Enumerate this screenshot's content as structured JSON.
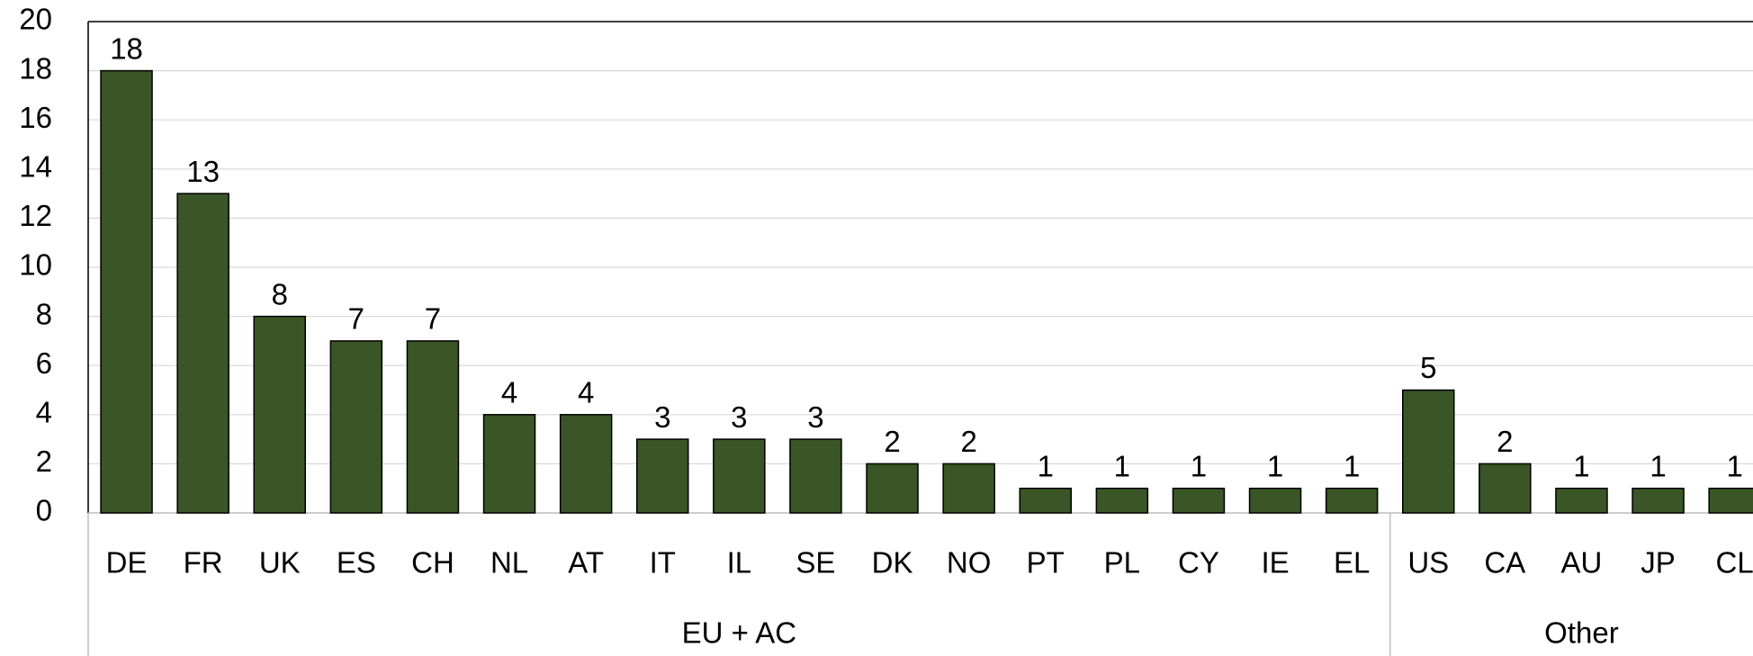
{
  "chart_data": {
    "type": "bar",
    "categories": [
      "DE",
      "FR",
      "UK",
      "ES",
      "CH",
      "NL",
      "AT",
      "IT",
      "IL",
      "SE",
      "DK",
      "NO",
      "PT",
      "PL",
      "CY",
      "IE",
      "EL",
      "US",
      "CA",
      "AU",
      "JP",
      "CL"
    ],
    "values": [
      18,
      13,
      8,
      7,
      7,
      4,
      4,
      3,
      3,
      3,
      2,
      2,
      1,
      1,
      1,
      1,
      1,
      5,
      2,
      1,
      1,
      1
    ],
    "groups": [
      {
        "label": "EU + AC",
        "count": 17
      },
      {
        "label": "Other",
        "count": 5
      }
    ],
    "color": "#3a5626",
    "ylim": [
      0,
      20
    ],
    "yticks": [
      0,
      2,
      4,
      6,
      8,
      10,
      12,
      14,
      16,
      18,
      20
    ],
    "grid": true
  }
}
